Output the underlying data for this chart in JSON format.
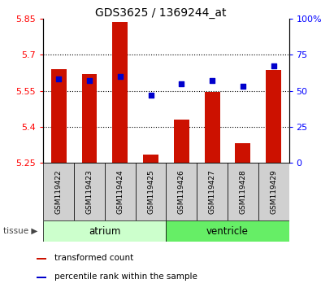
{
  "title": "GDS3625 / 1369244_at",
  "samples": [
    "GSM119422",
    "GSM119423",
    "GSM119424",
    "GSM119425",
    "GSM119426",
    "GSM119427",
    "GSM119428",
    "GSM119429"
  ],
  "red_values": [
    5.64,
    5.62,
    5.835,
    5.285,
    5.43,
    5.545,
    5.33,
    5.635
  ],
  "blue_values": [
    58,
    57,
    60,
    47,
    55,
    57,
    53,
    67
  ],
  "ylim_left": [
    5.25,
    5.85
  ],
  "ylim_right": [
    0,
    100
  ],
  "yticks_left": [
    5.25,
    5.4,
    5.55,
    5.7,
    5.85
  ],
  "yticks_right": [
    0,
    25,
    50,
    75,
    100
  ],
  "ytick_labels_left": [
    "5.25",
    "5.4",
    "5.55",
    "5.7",
    "5.85"
  ],
  "ytick_labels_right": [
    "0",
    "25",
    "50",
    "75",
    "100%"
  ],
  "base_value": 5.25,
  "gridlines": [
    5.4,
    5.55,
    5.7
  ],
  "atrium_color": "#ccffcc",
  "ventricle_color": "#66ee66",
  "bar_color": "#cc1100",
  "dot_color": "#0000cc",
  "bar_width": 0.5,
  "dot_size": 22,
  "bg_color": "#ffffff",
  "sample_box_color": "#d0d0d0",
  "legend_red_label": "transformed count",
  "legend_blue_label": "percentile rank within the sample"
}
